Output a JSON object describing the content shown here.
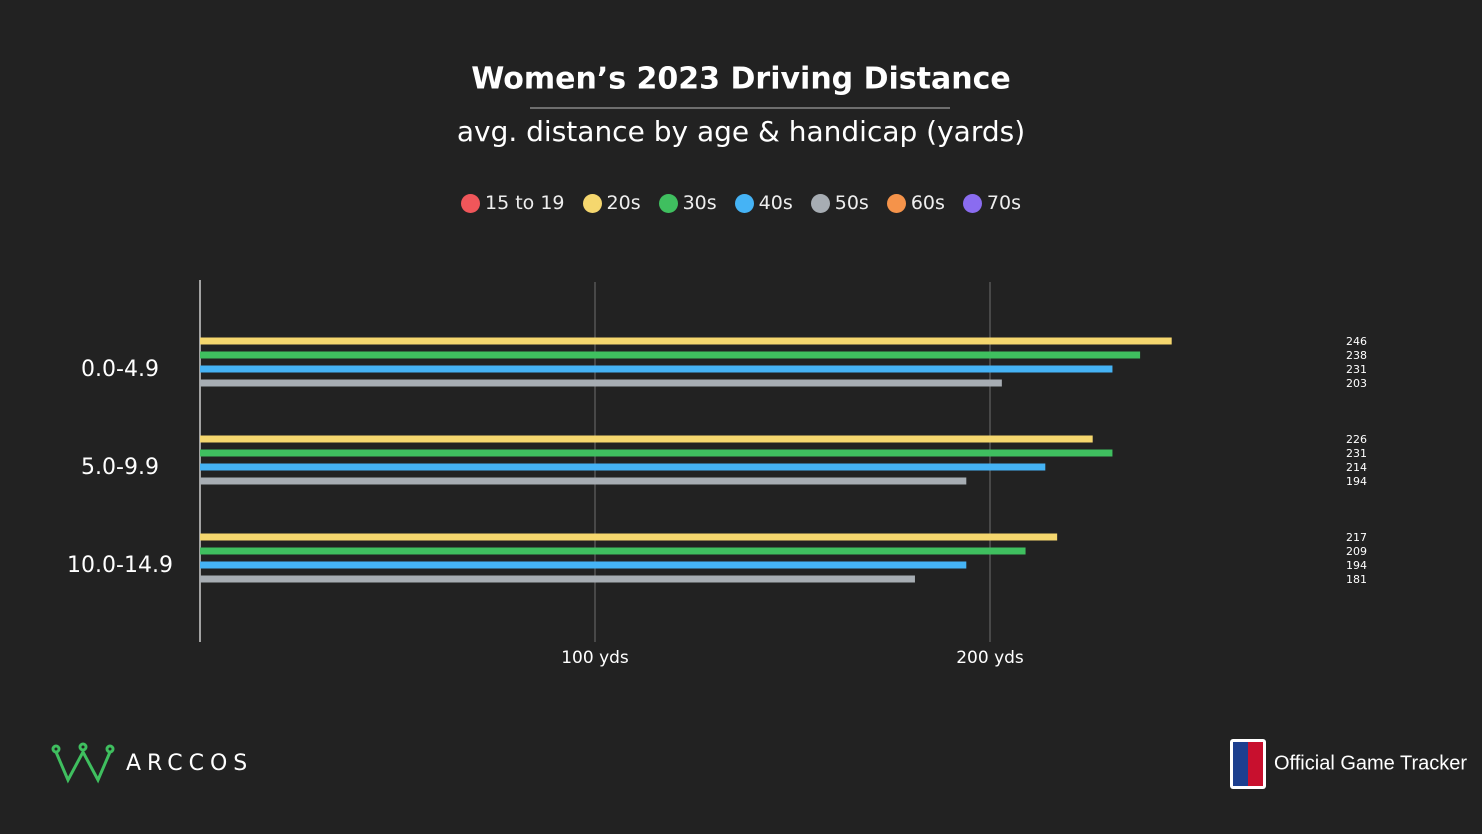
{
  "chart_data": {
    "type": "hbar",
    "title": "Women’s 2023 Driving Distance",
    "subtitle": "avg. distance by age & handicap (yards)",
    "categories": [
      "0.0-4.9",
      "5.0-9.9",
      "10.0-14.9"
    ],
    "series": [
      {
        "name": "15 to 19",
        "color": "#f0565a",
        "values": [
          null,
          null,
          null
        ]
      },
      {
        "name": "20s",
        "color": "#f5d76e",
        "values": [
          246,
          226,
          217
        ]
      },
      {
        "name": "30s",
        "color": "#3fbf5f",
        "values": [
          238,
          231,
          209
        ]
      },
      {
        "name": "40s",
        "color": "#45b3f5",
        "values": [
          231,
          214,
          194
        ]
      },
      {
        "name": "50s",
        "color": "#a7adb3",
        "values": [
          203,
          194,
          181
        ]
      },
      {
        "name": "60s",
        "color": "#f5934a",
        "values": [
          null,
          null,
          null
        ]
      },
      {
        "name": "70s",
        "color": "#8a6cf0",
        "values": [
          null,
          null,
          null
        ]
      }
    ],
    "xlim": [
      0,
      300
    ],
    "xticks": [
      {
        "value": 100,
        "label": "100 yds"
      },
      {
        "value": 200,
        "label": "200 yds"
      }
    ],
    "grid": true,
    "legend": "top"
  },
  "footer": {
    "brand": "ARCCOS",
    "tracker": "Official Game Tracker"
  }
}
